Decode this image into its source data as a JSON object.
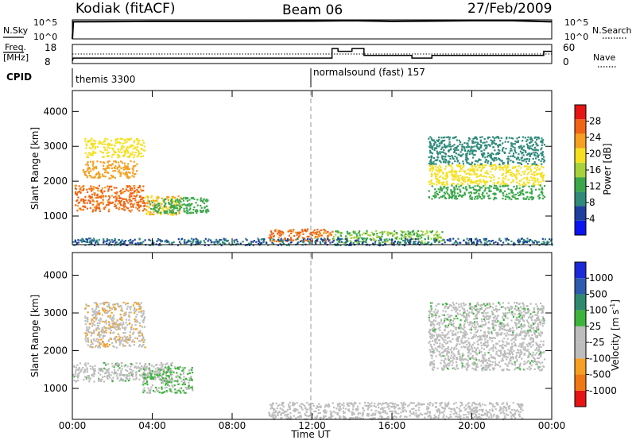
{
  "header": {
    "radar": "Kodiak (fitACF)",
    "beam": "Beam 06",
    "date": "27/Feb/2009"
  },
  "top_panels": {
    "nsky_label": "N.Sky",
    "nsearch_label": "N.Search",
    "nsky_ticks": [
      "10^5",
      "10^0"
    ],
    "nsearch_ticks": [
      "10^5",
      "10^0"
    ],
    "freq_label": "Freq.",
    "freq_unit": "[MHz]",
    "freq_ticks": [
      "18",
      "8"
    ],
    "nave_label": "Nave",
    "nave_ticks": [
      "60",
      "0"
    ],
    "cpid_label": "CPID",
    "cpid_segments": [
      {
        "name": "themis 3300",
        "start_hour": 0
      },
      {
        "name": "normalsound (fast) 157",
        "start_hour": 12
      }
    ]
  },
  "axes": {
    "xlabel": "Time UT",
    "x_ticks": [
      "00:00",
      "04:00",
      "08:00",
      "12:00",
      "16:00",
      "20:00",
      "00:00"
    ],
    "ylabel": "Slant Range [km]",
    "y_ticks": [
      "4000",
      "3000",
      "2000",
      "1000"
    ]
  },
  "colors": {
    "power_scale": [
      "#0a14f0",
      "#1e3fa0",
      "#2e8a7a",
      "#3aa84a",
      "#a8d23c",
      "#f5e020",
      "#f5a020",
      "#f06414",
      "#e61414"
    ],
    "velocity_scale": [
      "#1a2ad8",
      "#2e5ab0",
      "#2e8a6e",
      "#3cb43c",
      "#bdbdbd",
      "#bdbdbd",
      "#f5a020",
      "#f07814",
      "#e61414"
    ]
  },
  "chart_data": [
    {
      "type": "line",
      "title": "N.Sky / N.Search",
      "x_range_hours": [
        0,
        24
      ],
      "series": [
        {
          "name": "N.Sky",
          "x": [
            0,
            0.05,
            4,
            8,
            12,
            14,
            16,
            18,
            20,
            22,
            24
          ],
          "y_log10": [
            0,
            4.5,
            4.6,
            4.6,
            4.7,
            4.8,
            4.6,
            4.7,
            4.8,
            4.8,
            4.5
          ]
        }
      ]
    },
    {
      "type": "line",
      "title": "Freq. / Nave",
      "x_range_hours": [
        0,
        24
      ],
      "series": [
        {
          "name": "Freq.",
          "x": [
            0,
            0.05,
            13.0,
            13.0,
            13.3,
            13.3,
            14.0,
            14.0,
            14.6,
            14.6,
            17.0,
            17.0,
            18.0,
            18.0,
            23.6,
            23.6,
            24
          ],
          "y": [
            8,
            10,
            10,
            17,
            17,
            15,
            15,
            17,
            17,
            12,
            12,
            10,
            10,
            12,
            12,
            15,
            15
          ]
        }
      ]
    },
    {
      "type": "heatmap",
      "title": "Power [dB]",
      "xlabel": "Time UT",
      "ylabel": "Slant Range [km]",
      "x_range_hours": [
        0,
        24
      ],
      "y_range_km": [
        180,
        4600
      ],
      "colorbar_label": "Power [dB]",
      "colorbar_ticks": [
        "28",
        "24",
        "20",
        "16",
        "12",
        "8",
        "4"
      ],
      "blobs": [
        {
          "t0": 0.1,
          "t1": 3.6,
          "r0": 1150,
          "r1": 1900,
          "value": 27
        },
        {
          "t0": 0.5,
          "t1": 3.2,
          "r0": 2100,
          "r1": 2600,
          "value": 24
        },
        {
          "t0": 0.6,
          "t1": 3.6,
          "r0": 2700,
          "r1": 3250,
          "value": 20
        },
        {
          "t0": 3.6,
          "t1": 5.4,
          "r0": 1050,
          "r1": 1600,
          "value": 22
        },
        {
          "t0": 3.8,
          "t1": 6.8,
          "r0": 1100,
          "r1": 1550,
          "value": 12
        },
        {
          "t0": 9.8,
          "t1": 13.0,
          "r0": 280,
          "r1": 650,
          "value": 27
        },
        {
          "t0": 13.0,
          "t1": 18.5,
          "r0": 250,
          "r1": 600,
          "value": 14
        },
        {
          "t0": 0.0,
          "t1": 24.0,
          "r0": 180,
          "r1": 380,
          "value": 6
        },
        {
          "t0": 17.8,
          "t1": 23.6,
          "r0": 1900,
          "r1": 2500,
          "value": 20
        },
        {
          "t0": 17.8,
          "t1": 23.6,
          "r0": 1500,
          "r1": 1900,
          "value": 12
        },
        {
          "t0": 17.8,
          "t1": 23.6,
          "r0": 2500,
          "r1": 3300,
          "value": 8
        }
      ]
    },
    {
      "type": "heatmap",
      "title": "Velocity [m s^-1]",
      "xlabel": "Time UT",
      "ylabel": "Slant Range [km]",
      "x_range_hours": [
        0,
        24
      ],
      "y_range_km": [
        180,
        4600
      ],
      "colorbar_label": "Velocity [m s",
      "colorbar_unit_exp": "-1",
      "colorbar_ticks": [
        "1000",
        "500",
        "100",
        "25",
        "-25",
        "-100",
        "-500",
        "-1000"
      ],
      "blobs": [
        {
          "t0": 0.6,
          "t1": 3.6,
          "r0": 2100,
          "r1": 3300,
          "value": -300
        },
        {
          "t0": 0.0,
          "t1": 5.0,
          "r0": 1200,
          "r1": 1700,
          "value": 0
        },
        {
          "t0": 3.5,
          "t1": 6.0,
          "r0": 900,
          "r1": 1600,
          "value": 150
        },
        {
          "t0": 9.8,
          "t1": 22.5,
          "r0": 200,
          "r1": 650,
          "value": -150
        },
        {
          "t0": 17.8,
          "t1": 23.6,
          "r0": 1500,
          "r1": 2050,
          "value": 0
        },
        {
          "t0": 17.8,
          "t1": 23.6,
          "r0": 2050,
          "r1": 2500,
          "value": -200
        },
        {
          "t0": 17.8,
          "t1": 23.6,
          "r0": 2500,
          "r1": 3300,
          "value": 20
        }
      ]
    }
  ]
}
